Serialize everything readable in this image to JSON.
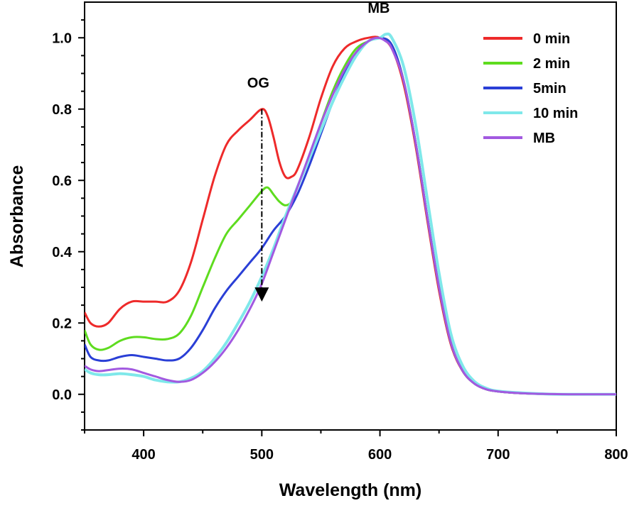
{
  "chart_data": {
    "type": "line",
    "xlabel": "Wavelength (nm)",
    "ylabel": "Absorbance",
    "xlim": [
      350,
      800
    ],
    "ylim": [
      -0.1,
      1.1
    ],
    "xticks": [
      400,
      500,
      600,
      700,
      800
    ],
    "yticks": [
      0.0,
      0.2,
      0.4,
      0.6,
      0.8,
      1.0
    ],
    "ytick_labels": [
      "0.0",
      "0.2",
      "0.4",
      "0.6",
      "0.8",
      "1.0"
    ],
    "grid": false,
    "legend_position": "top-right",
    "series": [
      {
        "name": "0 min",
        "color": "#ee2a2a",
        "x": [
          350,
          355,
          362,
          370,
          380,
          390,
          400,
          410,
          420,
          430,
          440,
          450,
          460,
          470,
          480,
          490,
          500,
          505,
          510,
          515,
          520,
          525,
          530,
          540,
          550,
          560,
          570,
          580,
          590,
          600,
          610,
          620,
          630,
          640,
          650,
          660,
          670,
          680,
          690,
          700,
          720,
          740,
          760,
          780,
          800
        ],
        "y": [
          0.23,
          0.2,
          0.19,
          0.2,
          0.24,
          0.26,
          0.26,
          0.26,
          0.26,
          0.29,
          0.37,
          0.49,
          0.61,
          0.7,
          0.74,
          0.77,
          0.8,
          0.78,
          0.72,
          0.65,
          0.61,
          0.61,
          0.63,
          0.72,
          0.83,
          0.92,
          0.97,
          0.99,
          1.0,
          1.0,
          0.97,
          0.87,
          0.7,
          0.49,
          0.29,
          0.14,
          0.065,
          0.03,
          0.014,
          0.008,
          0.003,
          0.001,
          0.0,
          0.0,
          0.0
        ]
      },
      {
        "name": "2 min",
        "color": "#5edc1f",
        "x": [
          350,
          355,
          362,
          370,
          380,
          390,
          400,
          410,
          420,
          430,
          440,
          450,
          460,
          470,
          480,
          490,
          500,
          505,
          510,
          515,
          520,
          525,
          530,
          540,
          550,
          560,
          570,
          580,
          590,
          600,
          610,
          620,
          630,
          640,
          650,
          660,
          670,
          680,
          690,
          700,
          720,
          740,
          760,
          780,
          800
        ],
        "y": [
          0.18,
          0.14,
          0.125,
          0.13,
          0.15,
          0.16,
          0.16,
          0.155,
          0.155,
          0.17,
          0.22,
          0.3,
          0.38,
          0.45,
          0.49,
          0.53,
          0.57,
          0.58,
          0.56,
          0.54,
          0.53,
          0.54,
          0.58,
          0.66,
          0.76,
          0.85,
          0.92,
          0.97,
          0.99,
          1.0,
          0.98,
          0.88,
          0.71,
          0.5,
          0.3,
          0.145,
          0.066,
          0.03,
          0.014,
          0.008,
          0.003,
          0.001,
          0.0,
          0.0,
          0.0
        ]
      },
      {
        "name": "5min",
        "color": "#2a3fd6",
        "x": [
          350,
          355,
          362,
          370,
          380,
          390,
          400,
          410,
          420,
          430,
          440,
          450,
          460,
          470,
          480,
          490,
          500,
          510,
          520,
          530,
          540,
          550,
          560,
          570,
          580,
          590,
          600,
          610,
          620,
          630,
          640,
          650,
          660,
          670,
          680,
          690,
          700,
          720,
          740,
          760,
          780,
          800
        ],
        "y": [
          0.14,
          0.105,
          0.095,
          0.095,
          0.105,
          0.11,
          0.105,
          0.1,
          0.095,
          0.1,
          0.13,
          0.18,
          0.24,
          0.29,
          0.33,
          0.37,
          0.41,
          0.46,
          0.5,
          0.56,
          0.64,
          0.73,
          0.82,
          0.9,
          0.96,
          0.99,
          1.0,
          0.98,
          0.88,
          0.71,
          0.5,
          0.3,
          0.145,
          0.066,
          0.03,
          0.014,
          0.008,
          0.003,
          0.001,
          0.0,
          0.0,
          0.0
        ]
      },
      {
        "name": "10 min",
        "color": "#7fe8ea",
        "x": [
          350,
          355,
          362,
          370,
          380,
          390,
          400,
          410,
          420,
          430,
          440,
          450,
          460,
          470,
          480,
          490,
          500,
          510,
          520,
          530,
          540,
          550,
          560,
          570,
          580,
          590,
          600,
          605,
          610,
          620,
          630,
          640,
          650,
          660,
          670,
          680,
          690,
          700,
          720,
          740,
          760,
          780,
          800
        ],
        "y": [
          0.07,
          0.06,
          0.055,
          0.055,
          0.058,
          0.055,
          0.05,
          0.04,
          0.035,
          0.035,
          0.045,
          0.065,
          0.1,
          0.145,
          0.2,
          0.26,
          0.33,
          0.41,
          0.5,
          0.58,
          0.66,
          0.74,
          0.82,
          0.89,
          0.95,
          0.99,
          1.0,
          1.01,
          1.0,
          0.92,
          0.76,
          0.55,
          0.34,
          0.17,
          0.08,
          0.036,
          0.017,
          0.009,
          0.004,
          0.001,
          0.0,
          0.0,
          0.0
        ]
      },
      {
        "name": "MB",
        "color": "#a259e0",
        "x": [
          350,
          355,
          362,
          370,
          380,
          390,
          400,
          410,
          420,
          430,
          440,
          450,
          460,
          470,
          480,
          490,
          500,
          510,
          520,
          530,
          540,
          550,
          560,
          570,
          580,
          590,
          598,
          605,
          610,
          620,
          630,
          640,
          650,
          660,
          670,
          680,
          690,
          700,
          720,
          740,
          760,
          780,
          800
        ],
        "y": [
          0.08,
          0.07,
          0.065,
          0.068,
          0.072,
          0.07,
          0.06,
          0.05,
          0.04,
          0.035,
          0.04,
          0.06,
          0.09,
          0.13,
          0.18,
          0.24,
          0.31,
          0.4,
          0.49,
          0.58,
          0.67,
          0.76,
          0.84,
          0.91,
          0.96,
          0.99,
          1.0,
          0.99,
          0.97,
          0.88,
          0.71,
          0.5,
          0.3,
          0.145,
          0.066,
          0.03,
          0.014,
          0.008,
          0.003,
          0.001,
          0.0,
          0.0,
          0.0
        ]
      }
    ],
    "annotations": [
      {
        "text": "OG",
        "x": 497,
        "y": 0.86
      },
      {
        "text": "MB",
        "x": 599,
        "y": 1.07
      }
    ],
    "arrow": {
      "x": 500,
      "y_start": 0.8,
      "y_end": 0.26
    }
  }
}
